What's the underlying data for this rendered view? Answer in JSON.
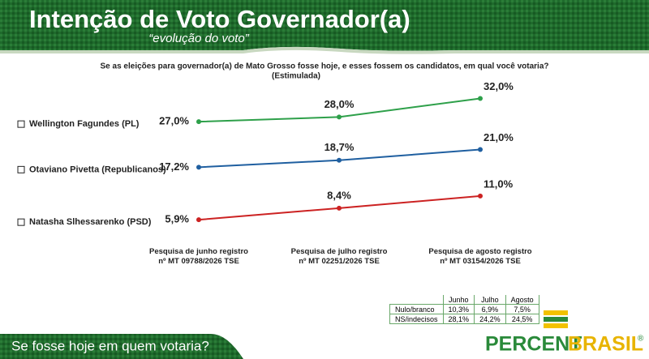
{
  "header": {
    "title": "Intenção de Voto Governador(a)",
    "subtitle": "“evolução do voto”"
  },
  "chart_data": {
    "type": "line",
    "title": "Se as eleições para governador(a) de Mato Grosso fosse hoje, e esses fossem os candidatos, em qual você votaria?",
    "subtitle": "(Estimulada)",
    "categories": [
      "Pesquisa de junho registro\nnº MT 09788/2026 TSE",
      "Pesquisa de julho registro\nnº MT 02251/2026 TSE",
      "Pesquisa de agosto registro\nnº MT 03154/2026 TSE"
    ],
    "ylim": [
      0,
      34
    ],
    "series": [
      {
        "name": "Wellington Fagundes (PL)",
        "color": "#2ea04a",
        "values": [
          27.0,
          28.0,
          32.0
        ],
        "value_labels": [
          "27,0%",
          "28,0%",
          "32,0%"
        ]
      },
      {
        "name": "Otaviano Pivetta (Republicanos)",
        "color": "#1f5fa0",
        "values": [
          17.2,
          18.7,
          21.0
        ],
        "value_labels": [
          "17,2%",
          "18,7%",
          "21,0%"
        ]
      },
      {
        "name": "Natasha Slhessarenko (PSD)",
        "color": "#cc2222",
        "values": [
          5.9,
          8.4,
          11.0
        ],
        "value_labels": [
          "5,9%",
          "8,4%",
          "11,0%"
        ]
      }
    ]
  },
  "table": {
    "columns": [
      "Junho",
      "Julho",
      "Agosto"
    ],
    "rows": [
      {
        "label": "Nulo/branco",
        "cells": [
          "10,3%",
          "6,9%",
          "7,5%"
        ]
      },
      {
        "label": "NS/indecisos",
        "cells": [
          "28,1%",
          "24,2%",
          "24,5%"
        ]
      }
    ]
  },
  "footer": {
    "text": "Se fosse hoje em quem votaria?",
    "logo_left": "PERCENT",
    "logo_right": "BRASIL",
    "logo_mark": "®"
  }
}
